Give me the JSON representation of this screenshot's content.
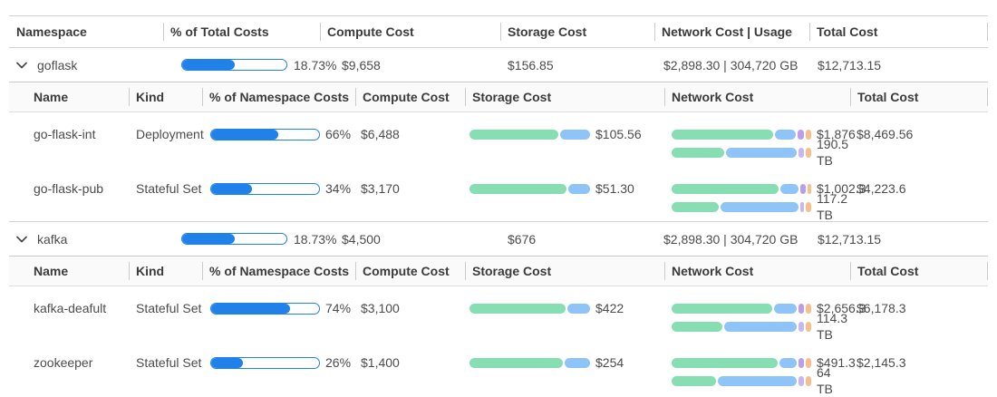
{
  "palette": {
    "percent_blue": "#2082e8",
    "green": "#86deb2",
    "blue": "#8ec4f8",
    "purple": "#bb9deb",
    "lavender": "#c8b6f2",
    "orange": "#f7c08a"
  },
  "table": {
    "columns": [
      "Namespace",
      "% of Total Costs",
      "Compute Cost",
      "Storage Cost",
      "Network Cost | Usage",
      "Total Cost"
    ],
    "sub_columns": [
      "Name",
      "Kind",
      "% of Namespace Costs",
      "Compute Cost",
      "Storage Cost",
      "Network Cost",
      "Total Cost"
    ],
    "namespaces": [
      {
        "name": "goflask",
        "pct_label": "18.73%",
        "pct_fill": 50,
        "compute": "$9,658",
        "storage": "$156.85",
        "network": "$2,898.30 | 304,720 GB",
        "total": "$12,713.15",
        "workloads": [
          {
            "name": "go-flask-int",
            "kind": "Deployment",
            "pct_label": "66%",
            "pct_fill": 62,
            "compute": "$6,488",
            "storage_value": "$105.56",
            "storage_segments": [
              {
                "color": "green",
                "pct": 75
              },
              {
                "color": "blue",
                "pct": 25
              }
            ],
            "network_cost_value": "$1,876",
            "network_cost_segments": [
              {
                "color": "green",
                "pct": 76
              },
              {
                "color": "blue",
                "pct": 15
              },
              {
                "color": "purple",
                "pct": 5
              },
              {
                "color": "orange",
                "pct": 4
              }
            ],
            "network_usage_value": "190.5 TB",
            "network_usage_segments": [
              {
                "color": "green",
                "pct": 39
              },
              {
                "color": "blue",
                "pct": 53
              },
              {
                "color": "lavender",
                "pct": 4
              },
              {
                "color": "orange",
                "pct": 4
              }
            ],
            "total": "$8,469.56"
          },
          {
            "name": "go-flask-pub",
            "kind": "Stateful Set",
            "pct_label": "34%",
            "pct_fill": 38,
            "compute": "$3,170",
            "storage_value": "$51.30",
            "storage_segments": [
              {
                "color": "green",
                "pct": 82
              },
              {
                "color": "blue",
                "pct": 18
              }
            ],
            "network_cost_value": "$1,002.3",
            "network_cost_segments": [
              {
                "color": "green",
                "pct": 80
              },
              {
                "color": "blue",
                "pct": 13
              },
              {
                "color": "purple",
                "pct": 4
              },
              {
                "color": "orange",
                "pct": 3
              }
            ],
            "network_usage_value": "117.2 TB",
            "network_usage_segments": [
              {
                "color": "green",
                "pct": 35
              },
              {
                "color": "blue",
                "pct": 58
              },
              {
                "color": "lavender",
                "pct": 3
              },
              {
                "color": "orange",
                "pct": 4
              }
            ],
            "total": "$4,223.6"
          }
        ]
      },
      {
        "name": "kafka",
        "pct_label": "18.73%",
        "pct_fill": 50,
        "compute": "$4,500",
        "storage": "$676",
        "network": "$2,898.30 | 304,720 GB",
        "total": "$12,713.15",
        "workloads": [
          {
            "name": "kafka-deafult",
            "kind": "Stateful Set",
            "pct_label": "74%",
            "pct_fill": 73,
            "compute": "$3,100",
            "storage_value": "$422",
            "storage_segments": [
              {
                "color": "green",
                "pct": 81
              },
              {
                "color": "blue",
                "pct": 19
              }
            ],
            "network_cost_value": "$2,656.3",
            "network_cost_segments": [
              {
                "color": "green",
                "pct": 75
              },
              {
                "color": "blue",
                "pct": 17
              },
              {
                "color": "purple",
                "pct": 4
              },
              {
                "color": "orange",
                "pct": 4
              }
            ],
            "network_usage_value": "114.3 TB",
            "network_usage_segments": [
              {
                "color": "green",
                "pct": 38
              },
              {
                "color": "blue",
                "pct": 54
              },
              {
                "color": "lavender",
                "pct": 4
              },
              {
                "color": "orange",
                "pct": 4
              }
            ],
            "total": "$6,178.3"
          },
          {
            "name": "zookeeper",
            "kind": "Stateful Set",
            "pct_label": "26%",
            "pct_fill": 29,
            "compute": "$1,400",
            "storage_value": "$254",
            "storage_segments": [
              {
                "color": "green",
                "pct": 79
              },
              {
                "color": "blue",
                "pct": 21
              }
            ],
            "network_cost_value": "$491.3",
            "network_cost_segments": [
              {
                "color": "green",
                "pct": 79
              },
              {
                "color": "blue",
                "pct": 13
              },
              {
                "color": "purple",
                "pct": 4
              },
              {
                "color": "orange",
                "pct": 4
              }
            ],
            "network_usage_value": "64 TB",
            "network_usage_segments": [
              {
                "color": "green",
                "pct": 33
              },
              {
                "color": "blue",
                "pct": 59
              },
              {
                "color": "lavender",
                "pct": 4
              },
              {
                "color": "orange",
                "pct": 4
              }
            ],
            "total": "$2,145.3"
          }
        ]
      }
    ]
  }
}
